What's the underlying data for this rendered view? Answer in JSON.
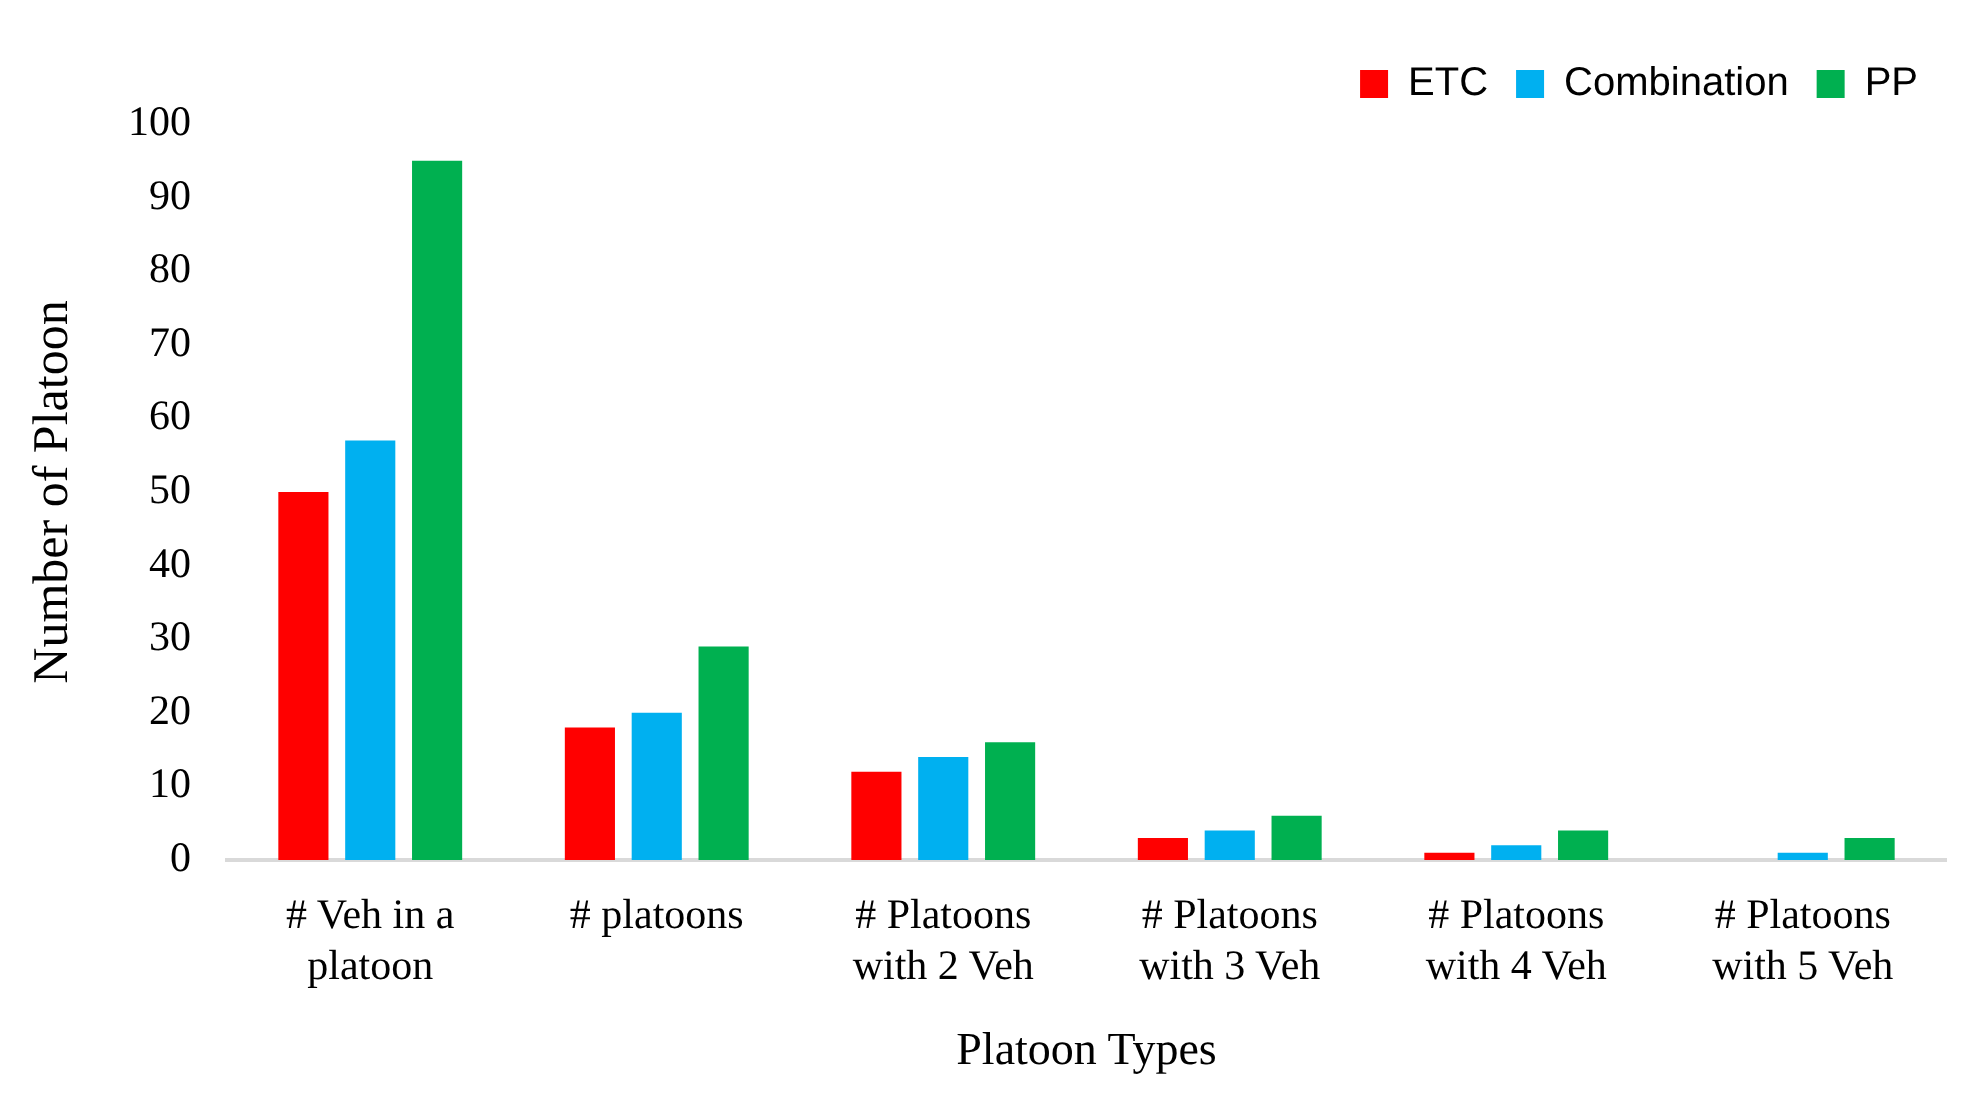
{
  "chart_data": {
    "type": "bar",
    "xlabel": "Platoon Types",
    "ylabel": "Number of Platoon",
    "categories": [
      "# Veh in a platoon",
      "# platoons",
      "# Platoons with 2 Veh",
      "# Platoons with 3 Veh",
      "# Platoons with 4 Veh",
      "# Platoons with 5 Veh"
    ],
    "series": [
      {
        "name": "ETC",
        "color": "#ff0000",
        "values": [
          50,
          18,
          12,
          3,
          1,
          0
        ]
      },
      {
        "name": "Combination",
        "color": "#00b0f0",
        "values": [
          57,
          20,
          14,
          4,
          2,
          1
        ]
      },
      {
        "name": "PP",
        "color": "#00b050",
        "values": [
          95,
          29,
          16,
          6,
          4,
          3
        ]
      }
    ],
    "ylim": [
      0,
      100
    ],
    "yticks": [
      0,
      10,
      20,
      30,
      40,
      50,
      60,
      70,
      80,
      90,
      100
    ],
    "grid": false,
    "legend": "top right"
  }
}
